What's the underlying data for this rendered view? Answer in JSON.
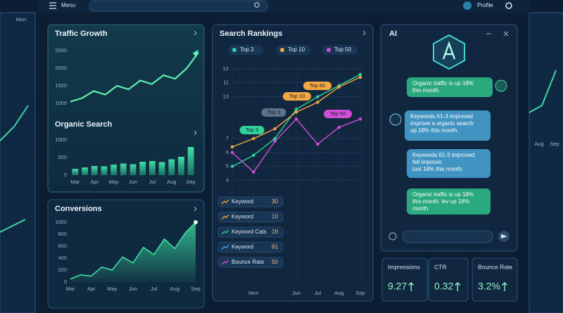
{
  "header": {
    "menu": "Menu",
    "profile": "Profile"
  },
  "edge_labels": {
    "left": "Mon",
    "right": [
      "Aug",
      "Sep"
    ]
  },
  "chart_data": [
    {
      "type": "line",
      "title": "Traffic Growth",
      "categories": [
        null,
        null,
        null,
        null,
        null,
        null,
        null,
        null,
        null,
        null,
        null,
        null
      ],
      "values": [
        1050,
        1150,
        1350,
        1250,
        1500,
        1400,
        1650,
        1550,
        1800,
        1700,
        2000,
        2450
      ],
      "color": "#5ef0b0",
      "ylim": [
        800,
        2800
      ],
      "yticks": [
        1000,
        1500,
        2000,
        2500
      ]
    },
    {
      "type": "bar",
      "title": "Organic Search",
      "categories": [
        "Mar",
        null,
        "Apr",
        null,
        "May",
        null,
        "Jun",
        null,
        "Jul",
        null,
        "Aug",
        null,
        "Sep"
      ],
      "values": [
        180,
        220,
        260,
        250,
        300,
        330,
        310,
        380,
        400,
        370,
        450,
        520,
        800
      ],
      "color": "#2bb88f",
      "ylim": [
        0,
        1200
      ],
      "yticks": [
        0,
        500,
        1000
      ]
    },
    {
      "type": "area",
      "title": "Conversions",
      "categories": [
        "Mar",
        null,
        "Apr",
        null,
        "May",
        null,
        "Jun",
        null,
        "Jul",
        null,
        "Aug",
        null,
        "Sep"
      ],
      "values": [
        50,
        120,
        100,
        250,
        200,
        420,
        320,
        580,
        460,
        720,
        560,
        820,
        1000
      ],
      "color": "#3ee6a6",
      "ylim": [
        0,
        1000
      ],
      "yticks": [
        0,
        200,
        400,
        600,
        800,
        1000
      ]
    },
    {
      "type": "line",
      "title": "Search Rankings",
      "categories": [
        null,
        "Mon",
        null,
        "Jun",
        "Jul",
        "Aug",
        "Sep"
      ],
      "series": [
        {
          "name": "Top 3",
          "color": "#2fd39a",
          "values": [
            5.0,
            5.8,
            7.0,
            9.1,
            10.0,
            10.8,
            11.6
          ]
        },
        {
          "name": "Top 10",
          "color": "#f5a742",
          "values": [
            6.4,
            7.0,
            7.7,
            8.9,
            9.6,
            10.7,
            11.4
          ]
        },
        {
          "name": "Top 50",
          "color": "#d14fd6",
          "values": [
            6.0,
            4.6,
            6.8,
            8.4,
            6.6,
            7.8,
            8.4
          ]
        }
      ],
      "ylim": [
        -3.5,
        12.5
      ],
      "yticks": [
        4,
        5,
        6,
        7,
        10,
        11,
        12
      ],
      "grid": true,
      "annotations": [
        "Top 3",
        "Top 10",
        "Top 80",
        "Top 50",
        "Top 3"
      ]
    }
  ],
  "keywords": [
    {
      "label": "Keyword",
      "value": 30
    },
    {
      "label": "Keyword",
      "value": 10
    },
    {
      "label": "Keyword Cats",
      "value": 19
    },
    {
      "label": "Keyword",
      "value": 91
    },
    {
      "label": "Bounce Rate",
      "value": 50
    }
  ],
  "ai": {
    "title": "AI",
    "messages": [
      [
        "Organic traffic is up 18%",
        "this month."
      ],
      [
        "Keywords A1-3 improved",
        "improve a organic search",
        "up 18% this month."
      ],
      [
        "Keywords 61-3 improved",
        "fell improvic",
        "tool 18% this month."
      ],
      [
        "Organic traffic is up 18%",
        "this month. lev up 18%",
        "month."
      ]
    ]
  },
  "stats": [
    {
      "label": "Impressions",
      "value": "9.27"
    },
    {
      "label": "CTR",
      "value": "0.32"
    },
    {
      "label": "Bounce Rate",
      "value": "3.2%"
    }
  ]
}
